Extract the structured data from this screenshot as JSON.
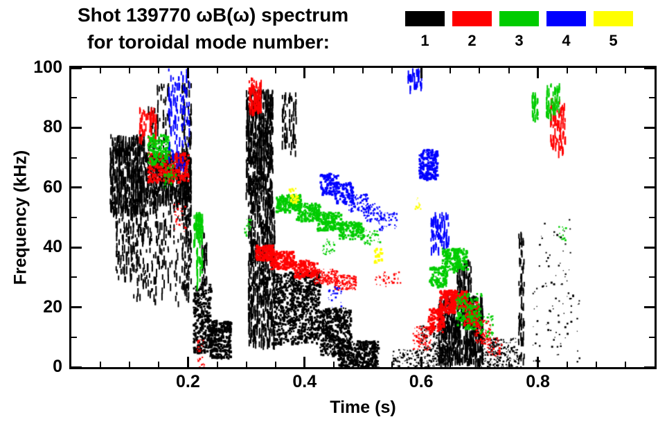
{
  "title": {
    "line1": "Shot 139770 ωB(ω) spectrum",
    "line2": "for toroidal mode number:"
  },
  "legend": {
    "items": [
      {
        "label": "1",
        "color": "#000000"
      },
      {
        "label": "2",
        "color": "#ff0000"
      },
      {
        "label": "3",
        "color": "#00cc00"
      },
      {
        "label": "4",
        "color": "#0000ff"
      },
      {
        "label": "5",
        "color": "#ffff00"
      }
    ]
  },
  "chart_data": {
    "type": "scatter",
    "title": "Shot 139770 ωB(ω) spectrum for toroidal mode number: 1 2 3 4 5",
    "xlabel": "Time (s)",
    "ylabel": "Frequency (kHz)",
    "xlim": [
      0,
      1.0
    ],
    "ylim": [
      0,
      100
    ],
    "x_ticks": [
      0.2,
      0.4,
      0.6,
      0.8
    ],
    "x_tick_labels": [
      "0.2",
      "0.4",
      "0.6",
      "0.8"
    ],
    "x_minor_step": 0.05,
    "y_ticks": [
      0,
      20,
      40,
      60,
      80,
      100
    ],
    "y_tick_labels": [
      "0",
      "20",
      "40",
      "60",
      "80",
      "100"
    ],
    "y_minor_step": 10,
    "grid": false,
    "legend_position": "top-right",
    "series": [
      {
        "name": "1",
        "color": "#000000",
        "clusters": [
          {
            "t": [
              0.065,
              0.125
            ],
            "f": [
              52,
              78
            ],
            "n": 550,
            "st": "v",
            "sz": 3
          },
          {
            "t": [
              0.075,
              0.13
            ],
            "f": [
              30,
              52
            ],
            "n": 130,
            "st": "v",
            "sz": 2
          },
          {
            "t": [
              0.125,
              0.205
            ],
            "f": [
              55,
              72
            ],
            "n": 500,
            "st": "v",
            "sz": 3
          },
          {
            "t": [
              0.1,
              0.205
            ],
            "f": [
              22,
              55
            ],
            "n": 200,
            "st": "v",
            "sz": 2
          },
          {
            "t": [
              0.13,
              0.17
            ],
            "f": [
              72,
              95
            ],
            "n": 70,
            "st": "v",
            "sz": 2
          },
          {
            "t": [
              0.188,
              0.205
            ],
            "f": [
              25,
              96
            ],
            "n": 180,
            "st": "v",
            "sz": 2
          },
          {
            "t": [
              0.208,
              0.238
            ],
            "f": [
              5,
              28
            ],
            "n": 300,
            "st": "s",
            "sz": 3
          },
          {
            "t": [
              0.235,
              0.272
            ],
            "f": [
              3,
              16
            ],
            "n": 320,
            "st": "s",
            "sz": 3
          },
          {
            "t": [
              0.222,
              0.232
            ],
            "f": [
              28,
              46
            ],
            "n": 40,
            "st": "v",
            "sz": 2
          },
          {
            "t": [
              0.298,
              0.345
            ],
            "f": [
              55,
              93
            ],
            "n": 650,
            "st": "v",
            "sz": 3
          },
          {
            "t": [
              0.302,
              0.348
            ],
            "f": [
              8,
              55
            ],
            "n": 550,
            "st": "v",
            "sz": 3
          },
          {
            "t": [
              0.345,
              0.425
            ],
            "f": [
              8,
              32
            ],
            "n": 750,
            "st": "s",
            "sz": 3
          },
          {
            "t": [
              0.36,
              0.385
            ],
            "f": [
              72,
              92
            ],
            "n": 70,
            "st": "v",
            "sz": 2
          },
          {
            "t": [
              0.425,
              0.478
            ],
            "f": [
              4,
              20
            ],
            "n": 420,
            "st": "s",
            "sz": 3
          },
          {
            "t": [
              0.455,
              0.525
            ],
            "f": [
              0,
              9
            ],
            "n": 380,
            "st": "s",
            "sz": 3
          },
          {
            "t": [
              0.55,
              0.6
            ],
            "f": [
              0,
              6
            ],
            "n": 90,
            "st": "s",
            "sz": 2
          },
          {
            "t": [
              0.598,
              0.645
            ],
            "f": [
              0,
              14
            ],
            "n": 220,
            "st": "s",
            "sz": 2
          },
          {
            "t": [
              0.628,
              0.705
            ],
            "f": [
              2,
              24
            ],
            "n": 650,
            "st": "v",
            "sz": 3
          },
          {
            "t": [
              0.66,
              0.685
            ],
            "f": [
              24,
              36
            ],
            "n": 70,
            "st": "v",
            "sz": 2
          },
          {
            "t": [
              0.7,
              0.765
            ],
            "f": [
              0,
              10
            ],
            "n": 220,
            "st": "s",
            "sz": 2
          },
          {
            "t": [
              0.765,
              0.776
            ],
            "f": [
              0,
              46
            ],
            "n": 70,
            "st": "v",
            "sz": 2
          },
          {
            "t": [
              0.79,
              0.87
            ],
            "f": [
              2,
              30
            ],
            "n": 70,
            "st": "s",
            "sz": 2
          },
          {
            "t": [
              0.8,
              0.855
            ],
            "f": [
              30,
              50
            ],
            "n": 28,
            "st": "s",
            "sz": 2
          }
        ]
      },
      {
        "name": "2",
        "color": "#ff0000",
        "clusters": [
          {
            "t": [
              0.115,
              0.145
            ],
            "f": [
              76,
              87
            ],
            "n": 60,
            "st": "v",
            "sz": 2
          },
          {
            "t": [
              0.13,
              0.2
            ],
            "f": [
              62,
              72
            ],
            "n": 300,
            "st": "s",
            "sz": 3
          },
          {
            "t": [
              0.175,
              0.195
            ],
            "f": [
              45,
              55
            ],
            "n": 30,
            "st": "s",
            "sz": 2
          },
          {
            "t": [
              0.215,
              0.228
            ],
            "f": [
              0,
              10
            ],
            "n": 30,
            "st": "s",
            "sz": 2
          },
          {
            "t": [
              0.303,
              0.325
            ],
            "f": [
              86,
              97
            ],
            "n": 100,
            "st": "v",
            "sz": 2
          },
          {
            "t": [
              0.315,
              0.345
            ],
            "f": [
              36,
              41
            ],
            "n": 180,
            "st": "s",
            "sz": 3
          },
          {
            "t": [
              0.34,
              0.38
            ],
            "f": [
              33,
              39
            ],
            "n": 200,
            "st": "s",
            "sz": 3
          },
          {
            "t": [
              0.38,
              0.42
            ],
            "f": [
              30,
              36
            ],
            "n": 160,
            "st": "s",
            "sz": 3
          },
          {
            "t": [
              0.415,
              0.455
            ],
            "f": [
              28,
              33
            ],
            "n": 140,
            "st": "s",
            "sz": 2
          },
          {
            "t": [
              0.45,
              0.487
            ],
            "f": [
              26,
              31
            ],
            "n": 120,
            "st": "s",
            "sz": 2
          },
          {
            "t": [
              0.52,
              0.565
            ],
            "f": [
              27,
              32
            ],
            "n": 40,
            "st": "s",
            "sz": 2
          },
          {
            "t": [
              0.585,
              0.615
            ],
            "f": [
              6,
              14
            ],
            "n": 90,
            "st": "s",
            "sz": 2
          },
          {
            "t": [
              0.61,
              0.637
            ],
            "f": [
              12,
              20
            ],
            "n": 140,
            "st": "s",
            "sz": 3
          },
          {
            "t": [
              0.63,
              0.657
            ],
            "f": [
              18,
              26
            ],
            "n": 180,
            "st": "s",
            "sz": 3
          },
          {
            "t": [
              0.65,
              0.677
            ],
            "f": [
              20,
              26
            ],
            "n": 160,
            "st": "s",
            "sz": 3
          },
          {
            "t": [
              0.672,
              0.697
            ],
            "f": [
              14,
              22
            ],
            "n": 140,
            "st": "s",
            "sz": 3
          },
          {
            "t": [
              0.69,
              0.717
            ],
            "f": [
              8,
              16
            ],
            "n": 100,
            "st": "s",
            "sz": 2
          },
          {
            "t": [
              0.712,
              0.737
            ],
            "f": [
              4,
              10
            ],
            "n": 50,
            "st": "s",
            "sz": 2
          },
          {
            "t": [
              0.82,
              0.847
            ],
            "f": [
              72,
              90
            ],
            "n": 90,
            "st": "v",
            "sz": 2
          }
        ]
      },
      {
        "name": "3",
        "color": "#00cc00",
        "clusters": [
          {
            "t": [
              0.13,
              0.167
            ],
            "f": [
              68,
              78
            ],
            "n": 150,
            "st": "s",
            "sz": 3
          },
          {
            "t": [
              0.155,
              0.178
            ],
            "f": [
              60,
              68
            ],
            "n": 50,
            "st": "s",
            "sz": 2
          },
          {
            "t": [
              0.208,
              0.225
            ],
            "f": [
              42,
              52
            ],
            "n": 70,
            "st": "v",
            "sz": 2
          },
          {
            "t": [
              0.213,
              0.225
            ],
            "f": [
              28,
              40
            ],
            "n": 28,
            "st": "v",
            "sz": 2
          },
          {
            "t": [
              0.295,
              0.307
            ],
            "f": [
              44,
              50
            ],
            "n": 22,
            "st": "s",
            "sz": 2
          },
          {
            "t": [
              0.35,
              0.392
            ],
            "f": [
              52,
              58
            ],
            "n": 170,
            "st": "s",
            "sz": 3
          },
          {
            "t": [
              0.385,
              0.425
            ],
            "f": [
              49,
              55
            ],
            "n": 150,
            "st": "s",
            "sz": 3
          },
          {
            "t": [
              0.42,
              0.462
            ],
            "f": [
              46,
              52
            ],
            "n": 150,
            "st": "s",
            "sz": 3
          },
          {
            "t": [
              0.458,
              0.5
            ],
            "f": [
              43,
              49
            ],
            "n": 130,
            "st": "s",
            "sz": 3
          },
          {
            "t": [
              0.43,
              0.452
            ],
            "f": [
              38,
              43
            ],
            "n": 28,
            "st": "s",
            "sz": 2
          },
          {
            "t": [
              0.5,
              0.528
            ],
            "f": [
              41,
              46
            ],
            "n": 40,
            "st": "s",
            "sz": 2
          },
          {
            "t": [
              0.613,
              0.642
            ],
            "f": [
              27,
              34
            ],
            "n": 110,
            "st": "s",
            "sz": 3
          },
          {
            "t": [
              0.635,
              0.662
            ],
            "f": [
              32,
              40
            ],
            "n": 130,
            "st": "s",
            "sz": 3
          },
          {
            "t": [
              0.655,
              0.678
            ],
            "f": [
              33,
              40
            ],
            "n": 90,
            "st": "s",
            "sz": 3
          },
          {
            "t": [
              0.658,
              0.702
            ],
            "f": [
              13,
              25
            ],
            "n": 140,
            "st": "s",
            "sz": 3
          },
          {
            "t": [
              0.7,
              0.722
            ],
            "f": [
              10,
              18
            ],
            "n": 40,
            "st": "s",
            "sz": 2
          },
          {
            "t": [
              0.788,
              0.8
            ],
            "f": [
              83,
              92
            ],
            "n": 35,
            "st": "v",
            "sz": 2
          },
          {
            "t": [
              0.813,
              0.837
            ],
            "f": [
              85,
              95
            ],
            "n": 55,
            "st": "v",
            "sz": 2
          },
          {
            "t": [
              0.835,
              0.848
            ],
            "f": [
              42,
              48
            ],
            "n": 14,
            "st": "s",
            "sz": 2
          }
        ]
      },
      {
        "name": "4",
        "color": "#0000ff",
        "clusters": [
          {
            "t": [
              0.165,
              0.202
            ],
            "f": [
              68,
              100
            ],
            "n": 110,
            "st": "v",
            "sz": 2
          },
          {
            "t": [
              0.425,
              0.457
            ],
            "f": [
              58,
              65
            ],
            "n": 100,
            "st": "s",
            "sz": 3
          },
          {
            "t": [
              0.45,
              0.482
            ],
            "f": [
              55,
              62
            ],
            "n": 90,
            "st": "s",
            "sz": 3
          },
          {
            "t": [
              0.475,
              0.507
            ],
            "f": [
              52,
              58
            ],
            "n": 80,
            "st": "s",
            "sz": 2
          },
          {
            "t": [
              0.5,
              0.532
            ],
            "f": [
              49,
              55
            ],
            "n": 60,
            "st": "s",
            "sz": 2
          },
          {
            "t": [
              0.525,
              0.557
            ],
            "f": [
              46,
              52
            ],
            "n": 50,
            "st": "s",
            "sz": 2
          },
          {
            "t": [
              0.44,
              0.462
            ],
            "f": [
              20,
              27
            ],
            "n": 22,
            "st": "s",
            "sz": 2
          },
          {
            "t": [
              0.575,
              0.6
            ],
            "f": [
              94,
              100
            ],
            "n": 40,
            "st": "v",
            "sz": 2
          },
          {
            "t": [
              0.595,
              0.627
            ],
            "f": [
              63,
              73
            ],
            "n": 200,
            "st": "s",
            "sz": 3
          },
          {
            "t": [
              0.615,
              0.647
            ],
            "f": [
              40,
              52
            ],
            "n": 80,
            "st": "v",
            "sz": 2
          }
        ]
      },
      {
        "name": "5",
        "color": "#ffff00",
        "clusters": [
          {
            "t": [
              0.372,
              0.388
            ],
            "f": [
              55,
              60
            ],
            "n": 28,
            "st": "s",
            "sz": 3
          },
          {
            "t": [
              0.518,
              0.533
            ],
            "f": [
              35,
              40
            ],
            "n": 22,
            "st": "s",
            "sz": 3
          },
          {
            "t": [
              0.588,
              0.598
            ],
            "f": [
              53,
              57
            ],
            "n": 10,
            "st": "s",
            "sz": 2
          }
        ]
      }
    ]
  }
}
